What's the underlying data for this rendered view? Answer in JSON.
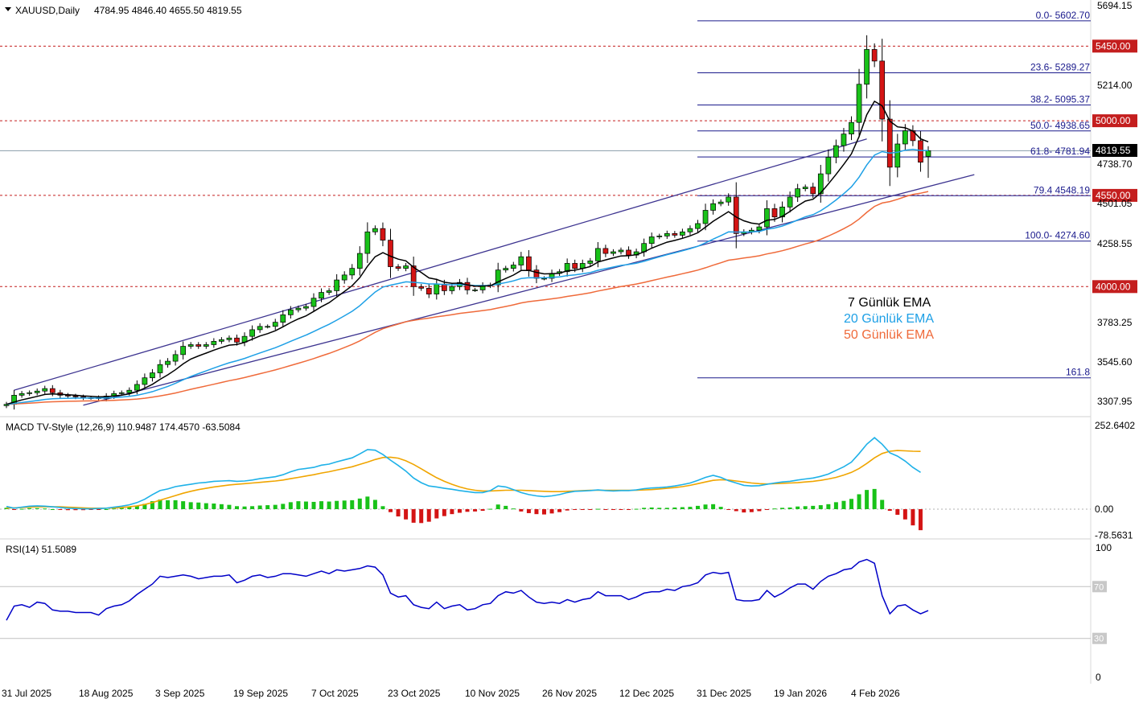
{
  "header": {
    "symbol": "XAUUSD,Daily",
    "ohlc": "4784.95 4846.40 4655.50 4819.55",
    "price_label": "4819.55"
  },
  "legend": {
    "ema7": "7 Günlük EMA",
    "ema20": "20 Günlük EMA",
    "ema50": "50 Günlük EMA"
  },
  "colors": {
    "bull": "#19c219",
    "bear": "#d41414",
    "ema7": "#000000",
    "ema20": "#1ea0e6",
    "ema50": "#ef6a3a",
    "channel": "#3d3490",
    "fib": "#1a1a8c",
    "hline": "#c41e1e",
    "macd_line": "#1eb1e8",
    "signal_line": "#f0a500",
    "rsi": "#0000c8"
  },
  "chart_data": [
    {
      "type": "candlestick",
      "title": "XAUUSD,Daily",
      "y_ticks": [
        "5694.15",
        "5214.00",
        "4738.70",
        "4501.05",
        "4258.55",
        "3783.25",
        "3545.60",
        "3307.95"
      ],
      "ylim": [
        3270,
        5740
      ],
      "x_ticks": [
        "31 Jul 2025",
        "18 Aug 2025",
        "3 Sep 2025",
        "19 Sep 2025",
        "7 Oct 2025",
        "23 Oct 2025",
        "10 Nov 2025",
        "26 Nov 2025",
        "12 Dec 2025",
        "31 Dec 2025",
        "19 Jan 2026",
        "4 Feb 2026"
      ],
      "last_ohlc": {
        "open": 4784.95,
        "high": 4846.4,
        "low": 4655.5,
        "close": 4819.55
      },
      "horizontal_levels": [
        {
          "value": 5450.0,
          "label": "5450.00"
        },
        {
          "value": 5000.0,
          "label": "5000.00"
        },
        {
          "value": 4550.0,
          "label": "4550.00"
        },
        {
          "value": 4000.0,
          "label": "4000.00"
        }
      ],
      "fibonacci": [
        {
          "label": "0.0- 5602.70",
          "value": 5602.7
        },
        {
          "label": "23.6- 5289.27",
          "value": 5289.27
        },
        {
          "label": "38.2- 5095.37",
          "value": 5095.37
        },
        {
          "label": "50.0- 4938.65",
          "value": 4938.65
        },
        {
          "label": "61.8- 4781.94",
          "value": 4781.94
        },
        {
          "label": "79.4 4548.19",
          "value": 4548.19
        },
        {
          "label": "100.0- 4274.60",
          "value": 4274.6
        },
        {
          "label": "161.8",
          "value": 3450.0
        }
      ],
      "closes": [
        3290,
        3345,
        3355,
        3360,
        3370,
        3385,
        3360,
        3345,
        3340,
        3335,
        3330,
        3330,
        3325,
        3340,
        3355,
        3360,
        3375,
        3410,
        3450,
        3480,
        3530,
        3550,
        3590,
        3640,
        3650,
        3640,
        3650,
        3670,
        3680,
        3690,
        3665,
        3700,
        3740,
        3760,
        3760,
        3785,
        3830,
        3860,
        3870,
        3880,
        3930,
        3965,
        3975,
        4040,
        4070,
        4110,
        4200,
        4330,
        4350,
        4280,
        4120,
        4110,
        4125,
        4000,
        3990,
        3955,
        4015,
        3975,
        4000,
        4025,
        3980,
        3980,
        4005,
        4010,
        4100,
        4110,
        4130,
        4180,
        4100,
        4050,
        4050,
        4080,
        4090,
        4140,
        4110,
        4140,
        4155,
        4230,
        4200,
        4210,
        4220,
        4190,
        4210,
        4260,
        4300,
        4305,
        4320,
        4310,
        4330,
        4350,
        4380,
        4460,
        4500,
        4510,
        4540,
        4320,
        4330,
        4340,
        4360,
        4470,
        4420,
        4480,
        4540,
        4590,
        4600,
        4560,
        4680,
        4780,
        4850,
        4920,
        4990,
        5220,
        5430,
        5360,
        5010,
        4720,
        4860,
        4940,
        4880,
        4750,
        4819.55
      ]
    },
    {
      "type": "bar",
      "title": "MACD TV-Style (12,26,9) 110.9487 174.4570 -63.5084",
      "y_ticks": [
        "252.6402",
        "0.00",
        "-78.5631"
      ],
      "ylim": [
        -100,
        290
      ],
      "series": [
        {
          "name": "MACD",
          "values": [
            8,
            3,
            6,
            9,
            10,
            9,
            7,
            5,
            3,
            2,
            1,
            1,
            2,
            3,
            6,
            9,
            13,
            20,
            30,
            44,
            56,
            61,
            68,
            72,
            75,
            79,
            81,
            84,
            85,
            86,
            84,
            85,
            88,
            92,
            95,
            98,
            104,
            113,
            120,
            123,
            126,
            133,
            136,
            143,
            149,
            155,
            167,
            180,
            178,
            165,
            148,
            132,
            115,
            94,
            80,
            70,
            67,
            63,
            60,
            56,
            53,
            50,
            50,
            56,
            70,
            67,
            59,
            50,
            44,
            40,
            38,
            40,
            44,
            50,
            54,
            55,
            56,
            58,
            56,
            55,
            56,
            56,
            58,
            62,
            64,
            65,
            67,
            70,
            74,
            79,
            87,
            96,
            102,
            96,
            86,
            79,
            72,
            70,
            71,
            75,
            79,
            82,
            84,
            88,
            91,
            94,
            99,
            106,
            117,
            128,
            142,
            168,
            196,
            216,
            196,
            170,
            160,
            145,
            126,
            110.9487
          ]
        },
        {
          "name": "Signal",
          "values": [
            4,
            4,
            5,
            6,
            7,
            7,
            7,
            7,
            6,
            5,
            4,
            3,
            3,
            3,
            4,
            5,
            7,
            10,
            14,
            20,
            27,
            34,
            41,
            48,
            54,
            59,
            63,
            67,
            70,
            73,
            75,
            77,
            79,
            81,
            83,
            85,
            88,
            92,
            96,
            100,
            104,
            109,
            113,
            118,
            123,
            128,
            135,
            142,
            150,
            156,
            157,
            154,
            146,
            135,
            122,
            108,
            95,
            84,
            75,
            67,
            61,
            57,
            55,
            55,
            56,
            57,
            57,
            57,
            56,
            55,
            54,
            53,
            53,
            54,
            55,
            56,
            57,
            57,
            57,
            57,
            57,
            57,
            57,
            58,
            59,
            61,
            63,
            65,
            68,
            72,
            77,
            82,
            87,
            89,
            88,
            85,
            82,
            79,
            77,
            76,
            77,
            78,
            79,
            80,
            82,
            84,
            87,
            91,
            96,
            103,
            111,
            123,
            138,
            155,
            168,
            175,
            177,
            176,
            175,
            174.457
          ]
        },
        {
          "name": "Histogram",
          "values": [
            4,
            -1,
            1,
            3,
            3,
            2,
            0,
            -2,
            -3,
            -3,
            -3,
            -2,
            -1,
            0,
            2,
            4,
            6,
            10,
            16,
            24,
            29,
            27,
            27,
            24,
            21,
            20,
            18,
            17,
            15,
            13,
            9,
            8,
            9,
            11,
            12,
            13,
            16,
            21,
            24,
            23,
            22,
            24,
            23,
            25,
            26,
            27,
            32,
            38,
            28,
            9,
            -9,
            -22,
            -31,
            -41,
            -42,
            -38,
            -28,
            -21,
            -15,
            -11,
            -8,
            -7,
            -5,
            1,
            14,
            10,
            2,
            -7,
            -12,
            -15,
            -16,
            -13,
            -9,
            -4,
            -1,
            -1,
            -1,
            1,
            -1,
            -2,
            -1,
            -1,
            1,
            4,
            5,
            4,
            4,
            5,
            6,
            7,
            10,
            14,
            15,
            7,
            -2,
            -6,
            -10,
            -9,
            -6,
            -1,
            2,
            4,
            5,
            8,
            9,
            10,
            12,
            15,
            21,
            25,
            31,
            45,
            58,
            61,
            28,
            -5,
            -17,
            -31,
            -49,
            -63.5084
          ]
        }
      ]
    },
    {
      "type": "line",
      "title": "RSI(14) 51.5089",
      "y_ticks": [
        "100",
        "70",
        "30",
        "0"
      ],
      "ylim": [
        0,
        100
      ],
      "series": [
        {
          "name": "RSI",
          "values": [
            44,
            55,
            56,
            54,
            58,
            57,
            52,
            51,
            51,
            50,
            50,
            50,
            48,
            53,
            55,
            56,
            59,
            64,
            68,
            72,
            78,
            77,
            78,
            79,
            78,
            76,
            77,
            78,
            78,
            79,
            73,
            75,
            78,
            79,
            77,
            78,
            80,
            80,
            79,
            78,
            80,
            82,
            80,
            83,
            82,
            83,
            84,
            86,
            85,
            79,
            65,
            62,
            63,
            56,
            54,
            53,
            58,
            53,
            55,
            56,
            52,
            53,
            56,
            57,
            63,
            66,
            65,
            67,
            62,
            58,
            57,
            58,
            57,
            60,
            58,
            60,
            61,
            66,
            63,
            63,
            63,
            60,
            62,
            65,
            66,
            66,
            68,
            67,
            70,
            71,
            73,
            79,
            81,
            80,
            81,
            60,
            59,
            59,
            60,
            67,
            62,
            65,
            69,
            72,
            72,
            68,
            74,
            78,
            80,
            83,
            84,
            89,
            91,
            88,
            63,
            49,
            55,
            56,
            52,
            49,
            51.5089
          ]
        }
      ]
    }
  ]
}
